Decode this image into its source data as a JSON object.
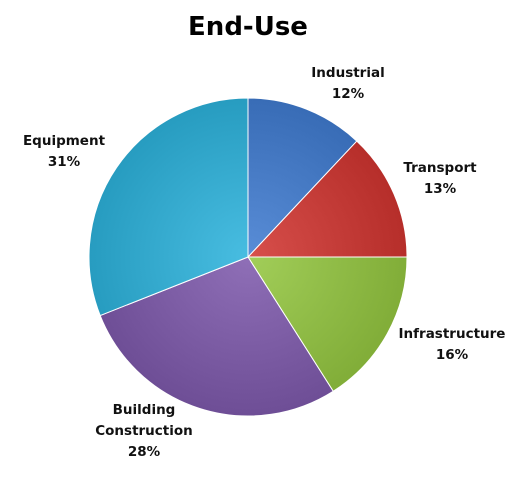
{
  "chart_data": {
    "type": "pie",
    "title": "End-Use",
    "legend": "none",
    "slices": [
      {
        "label": "Industrial",
        "value": 12,
        "value_label": "12%",
        "color": "#4a7ec8"
      },
      {
        "label": "Transport",
        "value": 13,
        "value_label": "13%",
        "color": "#c8403c"
      },
      {
        "label": "Infrastructure",
        "value": 16,
        "value_label": "16%",
        "color": "#93bf4a"
      },
      {
        "label": "Building\nConstruction",
        "value": 28,
        "value_label": "28%",
        "color": "#8060a8"
      },
      {
        "label": "Equipment",
        "value": 31,
        "value_label": "31%",
        "color": "#39aed2"
      }
    ]
  }
}
